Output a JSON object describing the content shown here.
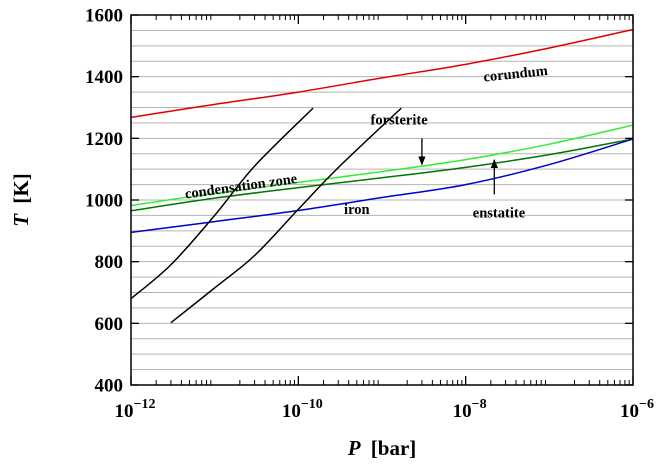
{
  "chart_data": {
    "type": "line",
    "xlabel": "P [bar]",
    "xlabel_var": "P",
    "xlabel_unit": "[bar]",
    "ylabel": "T [K]",
    "ylabel_var": "T",
    "ylabel_unit": "[K]",
    "x_scale": "log",
    "xlim": [
      1e-12,
      1e-06
    ],
    "ylim": [
      400,
      1600
    ],
    "grid": "horizontal",
    "x_ticks": [
      {
        "value": 1e-12,
        "base": "10",
        "exp": "−12"
      },
      {
        "value": 1e-10,
        "base": "10",
        "exp": "−10"
      },
      {
        "value": 1e-08,
        "base": "10",
        "exp": "−8"
      },
      {
        "value": 1e-06,
        "base": "10",
        "exp": "−6"
      }
    ],
    "y_ticks": [
      {
        "value": 400,
        "label": "400"
      },
      {
        "value": 600,
        "label": "600"
      },
      {
        "value": 800,
        "label": "800"
      },
      {
        "value": 1000,
        "label": "1000"
      },
      {
        "value": 1200,
        "label": "1200"
      },
      {
        "value": 1400,
        "label": "1400"
      },
      {
        "value": 1600,
        "label": "1600"
      }
    ],
    "y_gridlines": [
      450,
      500,
      550,
      600,
      650,
      700,
      750,
      800,
      850,
      900,
      950,
      1000,
      1050,
      1100,
      1150,
      1200,
      1250,
      1300,
      1350,
      1400,
      1450,
      1500,
      1550
    ],
    "series": [
      {
        "name": "corundum",
        "color": "#e00000",
        "x": [
          1e-12,
          1e-11,
          1e-10,
          1e-09,
          1e-08,
          1e-07,
          1e-06
        ],
        "y": [
          1268,
          1310,
          1350,
          1396,
          1440,
          1493,
          1553
        ]
      },
      {
        "name": "forsterite",
        "color": "#33ee33",
        "x": [
          1e-12,
          1e-11,
          1e-10,
          1e-09,
          1e-08,
          1e-07,
          1e-06
        ],
        "y": [
          982,
          1022,
          1057,
          1092,
          1131,
          1181,
          1243
        ]
      },
      {
        "name": "enstatite",
        "color": "#007700",
        "x": [
          1e-12,
          1e-11,
          1e-10,
          1e-09,
          1e-08,
          1e-07,
          1e-06
        ],
        "y": [
          965,
          1006,
          1040,
          1072,
          1106,
          1147,
          1198
        ]
      },
      {
        "name": "iron",
        "color": "#0000cc",
        "x": [
          1e-12,
          1e-11,
          1e-10,
          1e-09,
          1e-08,
          1e-07,
          1e-06
        ],
        "y": [
          895,
          930,
          966,
          1008,
          1050,
          1115,
          1198
        ]
      },
      {
        "name": "condensation zone (left)",
        "color": "#000000",
        "x": [
          1e-12,
          3e-12,
          1e-11,
          3e-11,
          1.5e-10
        ],
        "y": [
          680,
          790,
          950,
          1110,
          1298
        ]
      },
      {
        "name": "condensation zone (right)",
        "color": "#000000",
        "x": [
          3e-12,
          1e-11,
          3e-11,
          1e-10,
          3e-10,
          1.7e-09
        ],
        "y": [
          602,
          715,
          820,
          970,
          1105,
          1298
        ]
      }
    ],
    "annotations": [
      {
        "text": "corundum",
        "x": 4e-08,
        "y": 1395,
        "angle": -6
      },
      {
        "text": "forsterite",
        "x": 1.6e-09,
        "y": 1245,
        "angle": 0
      },
      {
        "text": "condensation zone",
        "x": 2.1e-11,
        "y": 1030,
        "angle": -8
      },
      {
        "text": "iron",
        "x": 5e-10,
        "y": 955,
        "angle": 0
      },
      {
        "text": "enstatite",
        "x": 2.5e-08,
        "y": 943,
        "angle": 0
      }
    ],
    "arrows": [
      {
        "label": "forsterite",
        "from": [
          3e-09,
          1200
        ],
        "to": [
          3e-09,
          1115
        ]
      },
      {
        "label": "enstatite",
        "from": [
          2.2e-08,
          1018
        ],
        "to": [
          2.2e-08,
          1130
        ]
      }
    ]
  }
}
